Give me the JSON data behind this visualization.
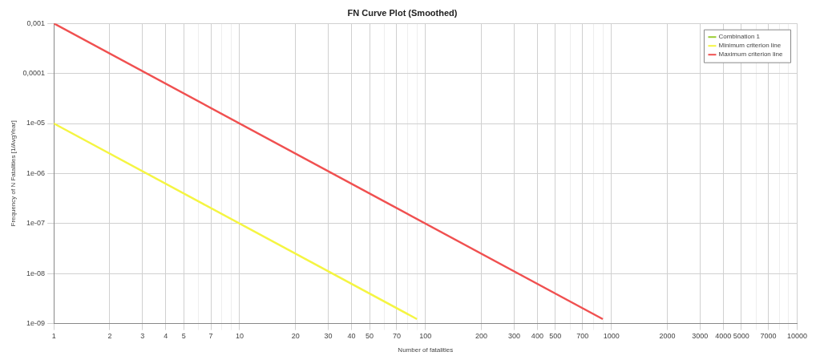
{
  "chart_data": {
    "type": "line",
    "title": "FN Curve Plot (Smoothed)",
    "xlabel": "Number of fatalities",
    "ylabel": "Frequency of N Fatalities [1/AvgYear]",
    "log": "xy",
    "grid": true,
    "legend": "top right",
    "marker": "none",
    "line_style": "solid",
    "xlim": [
      1,
      10000
    ],
    "ylim": [
      1e-09,
      0.001
    ],
    "xticks": [
      1,
      2,
      3,
      4,
      5,
      {
        "value": 6,
        "label": null
      },
      7,
      {
        "value": 8,
        "label": null
      },
      {
        "value": 9,
        "label": null
      },
      10,
      20,
      30,
      40,
      50,
      {
        "value": 60,
        "label": null
      },
      70,
      {
        "value": 80,
        "label": null
      },
      {
        "value": 90,
        "label": null
      },
      100,
      200,
      300,
      400,
      500,
      {
        "value": 600,
        "label": null
      },
      700,
      {
        "value": 800,
        "label": null
      },
      {
        "value": 900,
        "label": null
      },
      1000,
      2000,
      3000,
      4000,
      5000,
      {
        "value": 6000,
        "label": null
      },
      7000,
      {
        "value": 8000,
        "label": null
      },
      {
        "value": 9000,
        "label": null
      },
      10000
    ],
    "yticks": [
      {
        "value": 1e-09,
        "label": "1e-09"
      },
      {
        "value": 1e-08,
        "label": "1e-08"
      },
      {
        "value": 1e-07,
        "label": "1e-07"
      },
      {
        "value": 1e-06,
        "label": "1e-06"
      },
      {
        "value": 1e-05,
        "label": "1e-05"
      },
      {
        "value": 0.0001,
        "label": "0,0001"
      },
      {
        "value": 0.001,
        "label": "0,001"
      }
    ],
    "series": [
      {
        "name": "Combination 1",
        "color": "#9acd32"
      },
      {
        "name": "Minimum criterion line",
        "color": "#f5f542",
        "x": [
          1,
          90
        ],
        "values": [
          1e-05,
          1.23e-09
        ]
      },
      {
        "name": "Maximum criterion line",
        "color": "#f05050",
        "x": [
          1,
          900
        ],
        "values": [
          0.001,
          1.23e-09
        ]
      }
    ]
  }
}
